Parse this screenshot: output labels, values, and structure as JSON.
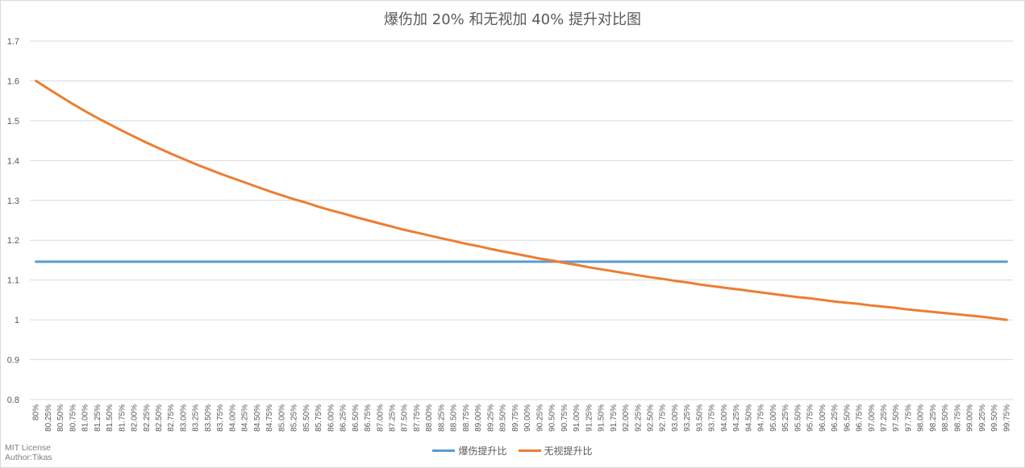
{
  "title": "爆伤加 20% 和无视加 40% 提升对比图",
  "credits": {
    "license": "MIT License",
    "author": "Author:Tikas"
  },
  "legend": [
    {
      "label": "爆伤提升比",
      "color": "#5b9bd5"
    },
    {
      "label": "无视提升比",
      "color": "#ed7d31"
    }
  ],
  "chart_data": {
    "type": "line",
    "title": "爆伤加 20% 和无视加 40% 提升对比图",
    "xlabel": "",
    "ylabel": "",
    "ylim": [
      0.8,
      1.7
    ],
    "yticks": [
      "0.8",
      "0.9",
      "1",
      "1.1",
      "1.2",
      "1.3",
      "1.4",
      "1.5",
      "1.6",
      "1.7"
    ],
    "grid": true,
    "legend_position": "bottom",
    "categories": [
      "80%",
      "80.25%",
      "80.50%",
      "80.75%",
      "81.00%",
      "81.25%",
      "81.50%",
      "81.75%",
      "82.00%",
      "82.25%",
      "82.50%",
      "82.75%",
      "83.00%",
      "83.25%",
      "83.50%",
      "83.75%",
      "84.00%",
      "84.25%",
      "84.50%",
      "84.75%",
      "85.00%",
      "85.25%",
      "85.50%",
      "85.75%",
      "86.00%",
      "86.25%",
      "86.50%",
      "86.75%",
      "87.00%",
      "87.25%",
      "87.50%",
      "87.75%",
      "88.00%",
      "88.25%",
      "88.50%",
      "88.75%",
      "89.00%",
      "89.25%",
      "89.50%",
      "89.75%",
      "90.00%",
      "90.25%",
      "90.50%",
      "90.75%",
      "91.00%",
      "91.25%",
      "91.50%",
      "91.75%",
      "92.00%",
      "92.25%",
      "92.50%",
      "92.75%",
      "93.00%",
      "93.25%",
      "93.50%",
      "93.75%",
      "94.00%",
      "94.25%",
      "94.50%",
      "94.75%",
      "95.00%",
      "95.25%",
      "95.50%",
      "95.75%",
      "96.00%",
      "96.25%",
      "96.50%",
      "96.75%",
      "97.00%",
      "97.25%",
      "97.50%",
      "97.75%",
      "98.00%",
      "98.25%",
      "98.50%",
      "98.75%",
      "99.00%",
      "99.25%",
      "99.50%",
      "99.75%"
    ],
    "series": [
      {
        "name": "爆伤提升比",
        "color": "#5b9bd5",
        "values": [
          1.146,
          1.146,
          1.146,
          1.146,
          1.146,
          1.146,
          1.146,
          1.146,
          1.146,
          1.146,
          1.146,
          1.146,
          1.146,
          1.146,
          1.146,
          1.146,
          1.146,
          1.146,
          1.146,
          1.146,
          1.146,
          1.146,
          1.146,
          1.146,
          1.146,
          1.146,
          1.146,
          1.146,
          1.146,
          1.146,
          1.146,
          1.146,
          1.146,
          1.146,
          1.146,
          1.146,
          1.146,
          1.146,
          1.146,
          1.146,
          1.146,
          1.146,
          1.146,
          1.146,
          1.146,
          1.146,
          1.146,
          1.146,
          1.146,
          1.146,
          1.146,
          1.146,
          1.146,
          1.146,
          1.146,
          1.146,
          1.146,
          1.146,
          1.146,
          1.146,
          1.146,
          1.146,
          1.146,
          1.146,
          1.146,
          1.146,
          1.146,
          1.146,
          1.146,
          1.146,
          1.146,
          1.146,
          1.146,
          1.146,
          1.146,
          1.146,
          1.146,
          1.146,
          1.146,
          1.146
        ]
      },
      {
        "name": "无视提升比",
        "color": "#ed7d31",
        "values": [
          1.6,
          1.58,
          1.561,
          1.542,
          1.524,
          1.507,
          1.491,
          1.475,
          1.46,
          1.445,
          1.431,
          1.417,
          1.404,
          1.391,
          1.379,
          1.367,
          1.356,
          1.345,
          1.334,
          1.323,
          1.313,
          1.303,
          1.294,
          1.284,
          1.275,
          1.267,
          1.258,
          1.25,
          1.242,
          1.234,
          1.226,
          1.219,
          1.212,
          1.205,
          1.198,
          1.191,
          1.185,
          1.178,
          1.172,
          1.166,
          1.16,
          1.154,
          1.149,
          1.143,
          1.138,
          1.132,
          1.127,
          1.122,
          1.117,
          1.112,
          1.107,
          1.103,
          1.098,
          1.094,
          1.089,
          1.085,
          1.081,
          1.077,
          1.073,
          1.069,
          1.065,
          1.061,
          1.057,
          1.054,
          1.05,
          1.046,
          1.043,
          1.04,
          1.036,
          1.033,
          1.03,
          1.026,
          1.023,
          1.02,
          1.017,
          1.014,
          1.011,
          1.008,
          1.004,
          1.0
        ]
      }
    ]
  }
}
